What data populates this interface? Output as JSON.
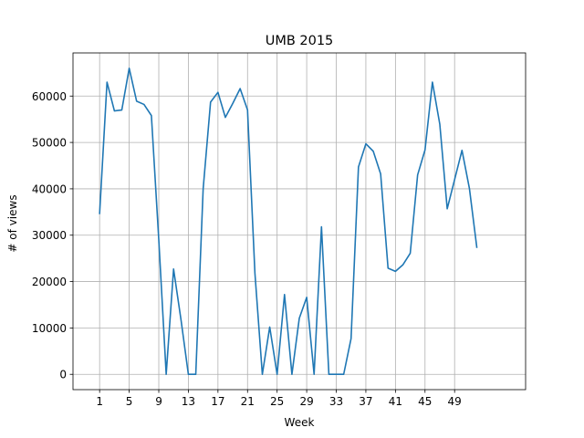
{
  "chart_data": {
    "type": "line",
    "title": "UMB 2015",
    "xlabel": "Week",
    "ylabel": "# of views",
    "xlim": [
      -2.6,
      58.6
    ],
    "ylim": [
      -3300,
      69300
    ],
    "xticks": [
      1,
      5,
      9,
      13,
      17,
      21,
      25,
      29,
      33,
      37,
      41,
      45,
      49
    ],
    "yticks": [
      0,
      10000,
      20000,
      30000,
      40000,
      50000,
      60000
    ],
    "grid": true,
    "legend": "none",
    "line_color": "#1f77b4",
    "series": [
      {
        "x": [
          1,
          2,
          3,
          4,
          5,
          6,
          7,
          8,
          9,
          10,
          11,
          12,
          13,
          14,
          15,
          16,
          17,
          18,
          19,
          20,
          21,
          22,
          23,
          24,
          25,
          26,
          27,
          28,
          29,
          30,
          31,
          32,
          33,
          34,
          35,
          36,
          37,
          38,
          39,
          40,
          41,
          42,
          43,
          44,
          45,
          46,
          47,
          48,
          49,
          50,
          51,
          52
        ],
        "values": [
          34700,
          63000,
          56800,
          57000,
          66000,
          58900,
          58200,
          55800,
          29000,
          0,
          22700,
          11800,
          0,
          0,
          40000,
          58700,
          60800,
          55400,
          58400,
          61600,
          57000,
          21800,
          0,
          10200,
          0,
          17200,
          0,
          12100,
          16600,
          0,
          31800,
          0,
          0,
          0,
          7700,
          44700,
          49700,
          48100,
          43200,
          22900,
          22200,
          23600,
          26100,
          43000,
          48400,
          63000,
          53900,
          35700,
          42000,
          48300,
          40100,
          27400
        ]
      }
    ]
  }
}
